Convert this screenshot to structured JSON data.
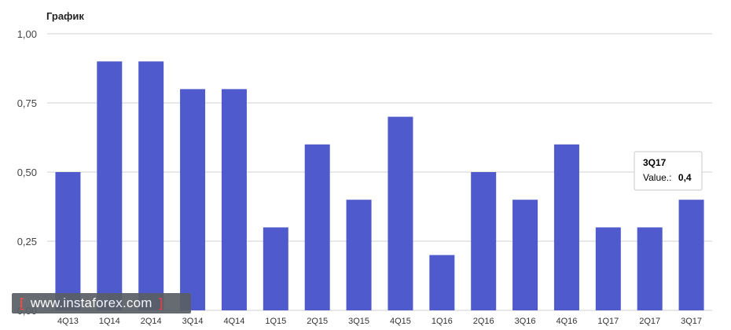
{
  "chart_data": {
    "type": "bar",
    "title": "График",
    "xlabel": "",
    "ylabel": "",
    "ylim": [
      0,
      1
    ],
    "yticks": [
      "0,00",
      "0,25",
      "0,50",
      "0,75",
      "1,00"
    ],
    "grid": true,
    "bar_color": "#4f5bcc",
    "categories": [
      "4Q13",
      "1Q14",
      "2Q14",
      "3Q14",
      "4Q14",
      "1Q15",
      "2Q15",
      "3Q15",
      "4Q15",
      "1Q16",
      "2Q16",
      "3Q16",
      "4Q16",
      "1Q17",
      "2Q17",
      "3Q17"
    ],
    "values": [
      0.5,
      0.9,
      0.9,
      0.8,
      0.8,
      0.3,
      0.6,
      0.4,
      0.7,
      0.2,
      0.5,
      0.4,
      0.6,
      0.3,
      0.3,
      0.4
    ],
    "tooltip": {
      "category": "3Q17",
      "label": "Value.:",
      "value": "0,4"
    }
  },
  "watermark": {
    "open": "[",
    "text": "www.instaforex.com",
    "close": "]"
  }
}
